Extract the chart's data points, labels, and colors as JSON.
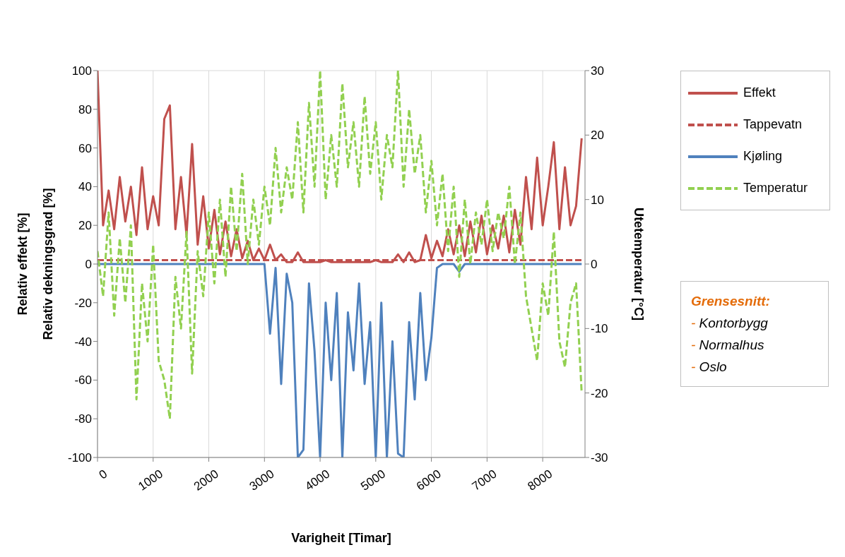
{
  "chart_data": {
    "type": "line",
    "xlabel": "Varigheit [Timar]",
    "ylabel": "Relativ effekt [%]\nRelativ dekningsgrad [%]",
    "y2label": "Utetemperatur [°C]",
    "x": [
      0,
      100,
      200,
      300,
      400,
      500,
      600,
      700,
      800,
      900,
      1000,
      1100,
      1200,
      1300,
      1400,
      1500,
      1600,
      1700,
      1800,
      1900,
      2000,
      2100,
      2200,
      2300,
      2400,
      2500,
      2600,
      2700,
      2800,
      2900,
      3000,
      3100,
      3200,
      3300,
      3400,
      3500,
      3600,
      3700,
      3800,
      3900,
      4000,
      4100,
      4200,
      4300,
      4400,
      4500,
      4600,
      4700,
      4800,
      4900,
      5000,
      5100,
      5200,
      5300,
      5400,
      5500,
      5600,
      5700,
      5800,
      5900,
      6000,
      6100,
      6200,
      6300,
      6400,
      6500,
      6600,
      6700,
      6800,
      6900,
      7000,
      7100,
      7200,
      7300,
      7400,
      7500,
      7600,
      7700,
      7800,
      7900,
      8000,
      8100,
      8200,
      8300,
      8400,
      8500,
      8600,
      8700
    ],
    "series": [
      {
        "name": "Effekt",
        "color": "#c0504d",
        "line_style": "solid",
        "values": [
          100,
          20,
          38,
          18,
          45,
          22,
          40,
          15,
          50,
          18,
          35,
          20,
          75,
          82,
          18,
          45,
          15,
          62,
          10,
          35,
          8,
          28,
          5,
          22,
          4,
          18,
          3,
          12,
          2,
          8,
          2,
          10,
          2,
          5,
          1,
          1,
          6,
          1,
          1,
          1,
          1,
          2,
          1,
          1,
          1,
          1,
          1,
          1,
          1,
          1,
          2,
          1,
          1,
          1,
          5,
          1,
          6,
          1,
          2,
          15,
          3,
          12,
          4,
          18,
          5,
          20,
          4,
          22,
          6,
          25,
          5,
          20,
          8,
          25,
          6,
          28,
          10,
          45,
          18,
          55,
          20,
          40,
          63,
          18,
          50,
          20,
          30,
          65
        ]
      },
      {
        "name": "Tappevatn",
        "color": "#c0504d",
        "line_style": "dashed",
        "x": [
          0,
          8700
        ],
        "values": [
          2,
          2
        ]
      },
      {
        "name": "Kjøling",
        "color": "#4f81bd",
        "line_style": "solid",
        "values": [
          0,
          0,
          0,
          0,
          0,
          0,
          0,
          0,
          0,
          0,
          0,
          0,
          0,
          0,
          0,
          0,
          0,
          0,
          0,
          0,
          0,
          0,
          0,
          0,
          0,
          0,
          0,
          0,
          0,
          0,
          0,
          -36,
          -2,
          -62,
          -5,
          -20,
          -100,
          -96,
          -10,
          -45,
          -100,
          -20,
          -60,
          -15,
          -100,
          -25,
          -55,
          -10,
          -62,
          -30,
          -100,
          -20,
          -100,
          -40,
          -98,
          -100,
          -30,
          -70,
          -15,
          -60,
          -38,
          -2,
          0,
          0,
          0,
          -4,
          0,
          0,
          0,
          0,
          0,
          0,
          0,
          0,
          0,
          0,
          0,
          0,
          0,
          0,
          0,
          0,
          0,
          0,
          0,
          0,
          0,
          0
        ]
      },
      {
        "name": "Temperatur",
        "color": "#92d050",
        "line_style": "dashed",
        "axis": "y2",
        "values": [
          2,
          -5,
          8,
          -8,
          4,
          -6,
          6,
          -21,
          -3,
          -12,
          3,
          -15,
          -18,
          -24,
          -2,
          -10,
          5,
          -17,
          2,
          -5,
          8,
          -3,
          10,
          -2,
          12,
          2,
          14,
          0,
          10,
          3,
          12,
          6,
          18,
          8,
          15,
          10,
          22,
          8,
          25,
          12,
          30,
          10,
          20,
          12,
          28,
          15,
          22,
          12,
          26,
          14,
          22,
          10,
          20,
          15,
          30,
          12,
          24,
          14,
          20,
          8,
          16,
          6,
          14,
          2,
          12,
          -2,
          10,
          0,
          8,
          3,
          10,
          2,
          8,
          4,
          12,
          0,
          8,
          -5,
          -10,
          -15,
          -3,
          -8,
          5,
          -12,
          -16,
          -6,
          -3,
          -20
        ]
      }
    ],
    "xlim": [
      0,
      8760
    ],
    "xticks": [
      0,
      1000,
      2000,
      3000,
      4000,
      5000,
      6000,
      7000,
      8000
    ],
    "ylim": [
      -100,
      100
    ],
    "yticks": [
      -100,
      -80,
      -60,
      -40,
      -20,
      0,
      20,
      40,
      60,
      80,
      100
    ],
    "y2lim": [
      -30,
      30
    ],
    "y2ticks": [
      -30,
      -20,
      -10,
      0,
      10,
      20,
      30
    ],
    "grid": true,
    "legend": "top right",
    "marker": "none",
    "annotations": [
      "Grensesnitt:",
      "- Kontorbygg",
      "- Normalhus",
      "- Oslo"
    ]
  }
}
